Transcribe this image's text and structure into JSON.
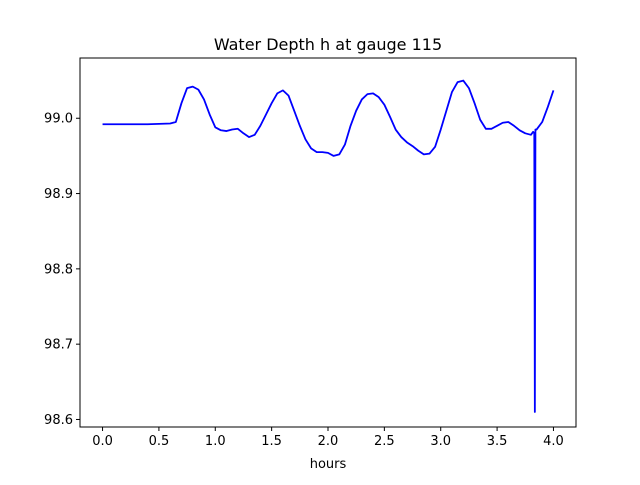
{
  "chart_data": {
    "type": "line",
    "title": "Water Depth h at gauge 115",
    "xlabel": "hours",
    "ylabel": "",
    "xlim": [
      -0.2,
      4.2
    ],
    "ylim": [
      98.59,
      99.08
    ],
    "xticks": [
      {
        "value": 0.0,
        "label": "0.0"
      },
      {
        "value": 0.5,
        "label": "0.5"
      },
      {
        "value": 1.0,
        "label": "1.0"
      },
      {
        "value": 1.5,
        "label": "1.5"
      },
      {
        "value": 2.0,
        "label": "2.0"
      },
      {
        "value": 2.5,
        "label": "2.5"
      },
      {
        "value": 3.0,
        "label": "3.0"
      },
      {
        "value": 3.5,
        "label": "3.5"
      },
      {
        "value": 4.0,
        "label": "4.0"
      }
    ],
    "yticks": [
      {
        "value": 98.6,
        "label": "98.6"
      },
      {
        "value": 98.7,
        "label": "98.7"
      },
      {
        "value": 98.8,
        "label": "98.8"
      },
      {
        "value": 98.9,
        "label": "98.9"
      },
      {
        "value": 99.0,
        "label": "99.0"
      }
    ],
    "grid": false,
    "series": [
      {
        "color": "#0000ff",
        "x": [
          0.0,
          0.2,
          0.4,
          0.6,
          0.65,
          0.7,
          0.75,
          0.8,
          0.85,
          0.9,
          0.95,
          1.0,
          1.05,
          1.1,
          1.15,
          1.2,
          1.25,
          1.3,
          1.35,
          1.4,
          1.45,
          1.5,
          1.55,
          1.6,
          1.65,
          1.7,
          1.75,
          1.8,
          1.85,
          1.9,
          1.95,
          2.0,
          2.05,
          2.1,
          2.15,
          2.2,
          2.25,
          2.3,
          2.35,
          2.4,
          2.45,
          2.5,
          2.55,
          2.6,
          2.65,
          2.7,
          2.75,
          2.8,
          2.85,
          2.9,
          2.95,
          3.0,
          3.05,
          3.1,
          3.15,
          3.2,
          3.25,
          3.3,
          3.35,
          3.4,
          3.45,
          3.5,
          3.55,
          3.6,
          3.65,
          3.7,
          3.75,
          3.8,
          3.82,
          3.83,
          3.835,
          3.84,
          3.85,
          3.9,
          3.95,
          4.0
        ],
        "y": [
          98.992,
          98.992,
          98.992,
          98.993,
          98.995,
          99.02,
          99.04,
          99.042,
          99.038,
          99.025,
          99.005,
          98.988,
          98.984,
          98.983,
          98.985,
          98.986,
          98.98,
          98.975,
          98.978,
          98.99,
          99.005,
          99.02,
          99.033,
          99.037,
          99.03,
          99.01,
          98.99,
          98.972,
          98.96,
          98.955,
          98.955,
          98.954,
          98.95,
          98.952,
          98.965,
          98.99,
          99.01,
          99.025,
          99.032,
          99.033,
          99.028,
          99.018,
          99.002,
          98.985,
          98.975,
          98.968,
          98.963,
          98.957,
          98.952,
          98.953,
          98.962,
          98.985,
          99.01,
          99.035,
          99.048,
          99.05,
          99.04,
          99.02,
          98.998,
          98.986,
          98.986,
          98.99,
          98.994,
          98.995,
          98.99,
          98.984,
          98.98,
          98.978,
          98.982,
          98.98,
          98.61,
          98.985,
          98.985,
          98.995,
          99.015,
          99.037
        ]
      }
    ]
  }
}
